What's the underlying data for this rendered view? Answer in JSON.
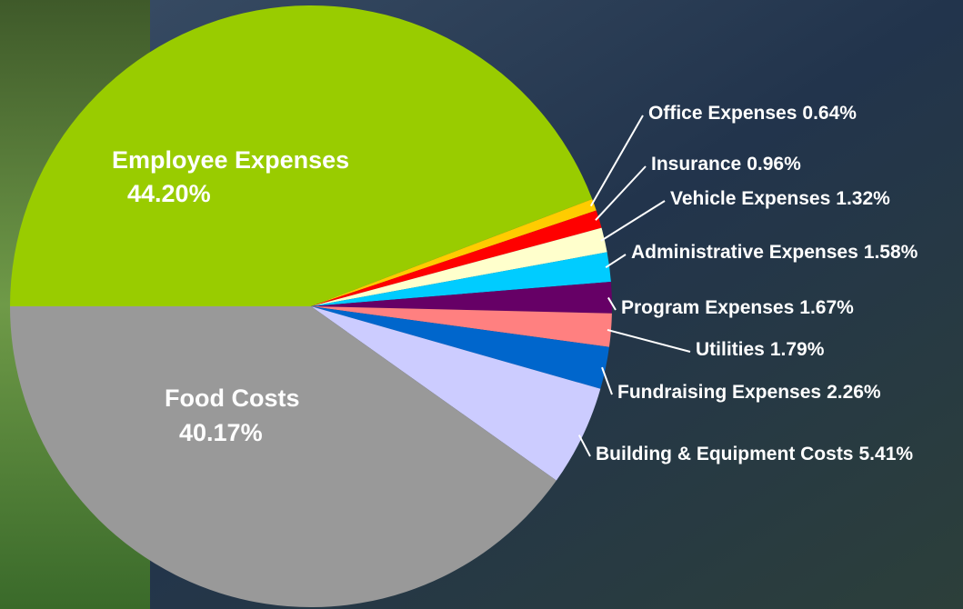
{
  "chart_data": {
    "type": "pie",
    "categories": [
      "Employee Expenses",
      "Office Expenses",
      "Insurance",
      "Vehicle Expenses",
      "Administrative Expenses",
      "Program Expenses",
      "Utilities",
      "Fundraising Expenses",
      "Building & Equipment Costs",
      "Food Costs"
    ],
    "values": [
      44.2,
      0.64,
      0.96,
      1.32,
      1.58,
      1.67,
      1.79,
      2.26,
      5.41,
      40.17
    ],
    "value_labels": [
      "44.20%",
      "0.64%",
      "0.96%",
      "1.32%",
      "1.58%",
      "1.67%",
      "1.79%",
      "2.26%",
      "5.41%",
      "40.17%"
    ],
    "colors": [
      "#99cc00",
      "#ffcc00",
      "#ff0000",
      "#ffffcc",
      "#00ccff",
      "#660066",
      "#ff8080",
      "#0066cc",
      "#ccccff",
      "#999999"
    ]
  }
}
